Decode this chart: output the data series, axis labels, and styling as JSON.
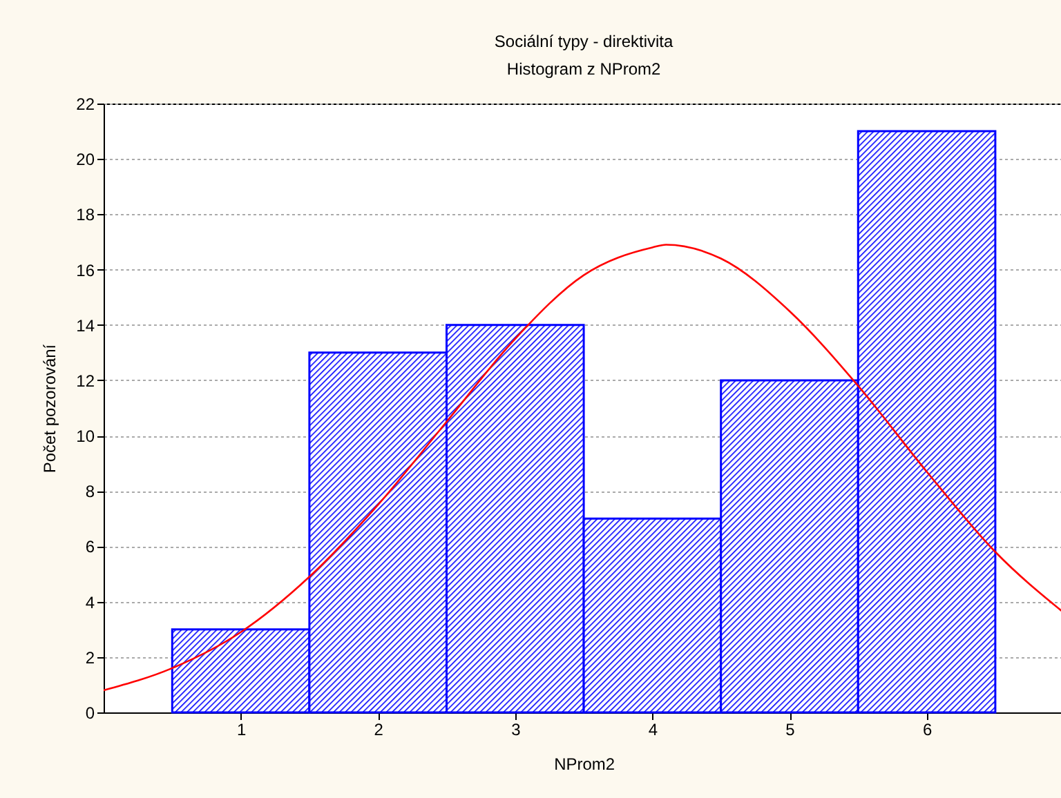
{
  "chart_data": {
    "type": "histogram",
    "title": "Sociální typy - direktivita",
    "subtitle": "Histogram z NProm2",
    "xlabel": "NProm2",
    "ylabel": "Počet pozorování",
    "bins": [
      0.5,
      1.5,
      2.5,
      3.5,
      4.5,
      5.5,
      6.5
    ],
    "values": [
      3,
      13,
      14,
      7,
      12,
      21
    ],
    "color": "#0000ff",
    "series": [
      {
        "type": "line",
        "color": "#ff0000",
        "x": [
          0,
          0.5,
          1,
          1.5,
          2,
          2.5,
          3,
          3.5,
          4,
          4.1,
          4.5,
          5,
          5.5,
          6,
          6.5,
          7
        ],
        "values": [
          0.8,
          1.6,
          2.9,
          4.9,
          7.5,
          10.5,
          13.5,
          15.8,
          16.8,
          16.9,
          16.4,
          14.5,
          11.8,
          8.7,
          5.8,
          3.6
        ]
      }
    ],
    "xlim": [
      0,
      7
    ],
    "xticks": [
      1,
      2,
      3,
      4,
      5,
      6
    ],
    "ylim": [
      0,
      22
    ],
    "yticks": [
      0,
      2,
      4,
      6,
      8,
      10,
      12,
      14,
      16,
      18,
      20,
      22
    ],
    "grid": "y"
  }
}
